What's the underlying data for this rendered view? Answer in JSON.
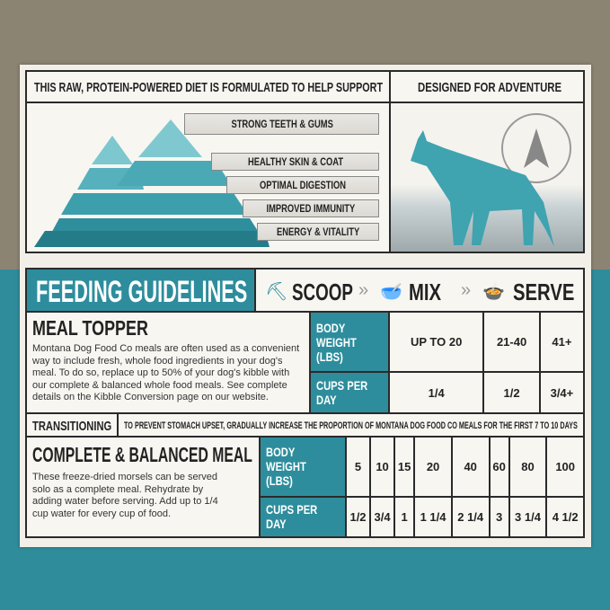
{
  "colors": {
    "teal": "#2e8d9c",
    "tan": "#8c8472",
    "card": "#f1efe8"
  },
  "header": {
    "left": "THIS RAW, PROTEIN-POWERED DIET IS FORMULATED TO HELP SUPPORT",
    "right": "DESIGNED FOR ADVENTURE"
  },
  "benefits": [
    "STRONG TEETH & GUMS",
    "HEALTHY SKIN & COAT",
    "OPTIMAL DIGESTION",
    "IMPROVED IMMUNITY",
    "ENERGY & VITALITY"
  ],
  "feeding": {
    "title": "FEEDING GUIDELINES",
    "steps": [
      {
        "label": "SCOOP",
        "icon": "scoop-icon"
      },
      {
        "label": "MIX",
        "icon": "mix-bowl-icon"
      },
      {
        "label": "SERVE",
        "icon": "dog-bowl-icon"
      }
    ],
    "separator": "»"
  },
  "topper": {
    "title": "MEAL TOPPER",
    "text": "Montana Dog Food Co meals are often used as a convenient way to include fresh, whole food ingredients in your dog's meal. To do so, replace up to 50% of your dog's kibble with our complete & balanced whole food meals. See complete details on the Kibble Conversion page on our website.",
    "row_weight": "BODY WEIGHT (LBS)",
    "row_cups": "CUPS PER DAY",
    "weights": [
      "UP TO 20",
      "21-40",
      "41+"
    ],
    "cups": [
      "1/4",
      "1/2",
      "3/4+"
    ]
  },
  "transition": {
    "label": "TRANSITIONING",
    "text": "TO PREVENT STOMACH UPSET, GRADUALLY INCREASE THE PROPORTION OF MONTANA DOG FOOD CO MEALS FOR THE FIRST 7 TO 10 DAYS"
  },
  "complete": {
    "title": "COMPLETE & BALANCED MEAL",
    "text": "These freeze-dried morsels can be served solo as a complete meal. Rehydrate by adding water before serving. Add up to 1/4 cup water for every cup of food.",
    "row_weight": "BODY WEIGHT (LBS)",
    "row_cups": "CUPS PER DAY",
    "weights": [
      "5",
      "10",
      "15",
      "20",
      "40",
      "60",
      "80",
      "100"
    ],
    "cups": [
      "1/2",
      "3/4",
      "1",
      "1 1/4",
      "2 1/4",
      "3",
      "3 1/4",
      "4 1/2"
    ]
  }
}
